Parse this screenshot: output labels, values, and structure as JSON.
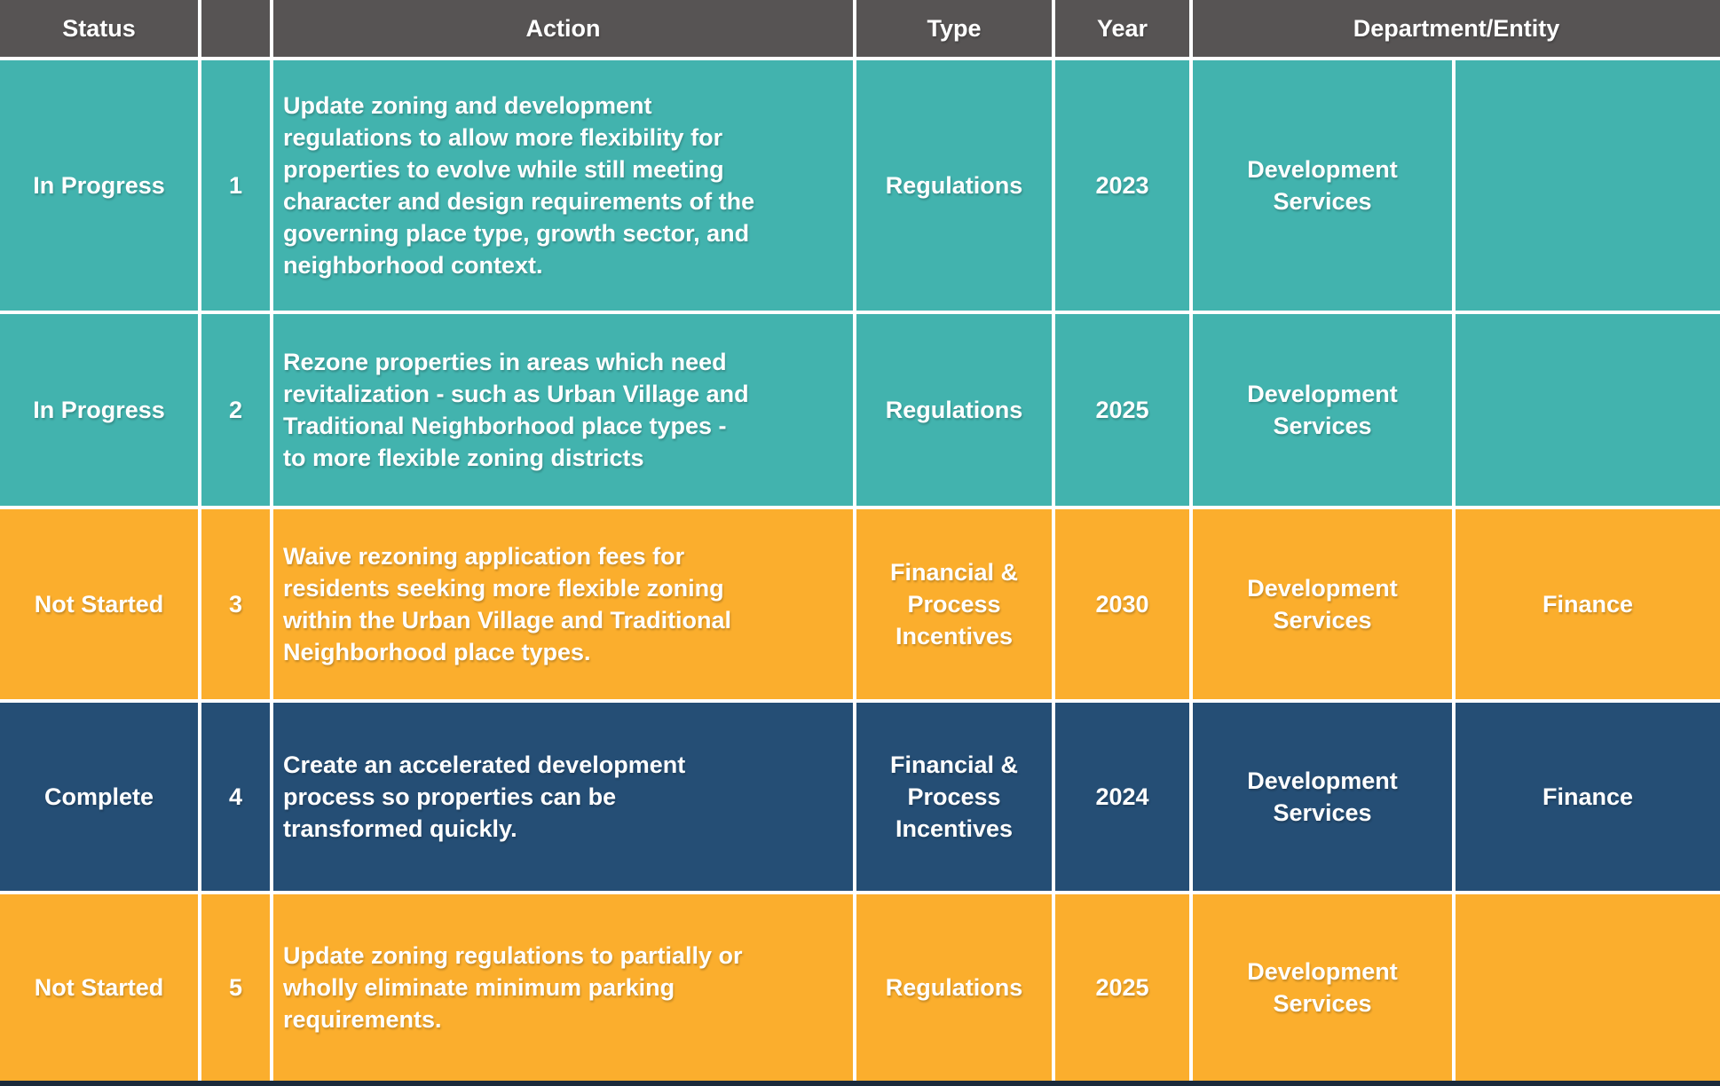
{
  "colors": {
    "header_bg": "#575454",
    "in_progress": "#42B3AE",
    "not_started": "#FBAE2D",
    "complete": "#254E75",
    "gridline": "#FFFFFF",
    "bottom_border": "#1B2A3A",
    "text": "#FFFFFF"
  },
  "table": {
    "columns": [
      {
        "key": "status",
        "label": "Status"
      },
      {
        "key": "num",
        "label": ""
      },
      {
        "key": "action",
        "label": "Action"
      },
      {
        "key": "type",
        "label": "Type"
      },
      {
        "key": "year",
        "label": "Year"
      },
      {
        "key": "department_entity",
        "label": "Department/Entity"
      }
    ],
    "rows": [
      {
        "theme": "in_progress",
        "status": "In Progress",
        "num": "1",
        "action": "Update zoning and development\nregulations to allow more flexibility for\nproperties to evolve while still meeting\ncharacter and design requirements of the\ngoverning place type, growth sector, and\nneighborhood context.",
        "type": "Regulations",
        "year": "2023",
        "department": "Development\nServices",
        "entity": ""
      },
      {
        "theme": "in_progress",
        "status": "In Progress",
        "num": "2",
        "action": "Rezone properties in areas which need\nrevitalization - such as Urban Village and\nTraditional Neighborhood place types -\nto more flexible zoning districts",
        "type": "Regulations",
        "year": "2025",
        "department": "Development\nServices",
        "entity": ""
      },
      {
        "theme": "not_started",
        "status": "Not Started",
        "num": "3",
        "action": "Waive rezoning application fees for\nresidents seeking more flexible zoning\nwithin the Urban Village and Traditional\nNeighborhood place types.",
        "type": "Financial &\nProcess\nIncentives",
        "year": "2030",
        "department": "Development\nServices",
        "entity": "Finance"
      },
      {
        "theme": "complete",
        "status": "Complete",
        "num": "4",
        "action": "Create an accelerated development\nprocess so properties can be\ntransformed quickly.",
        "type": "Financial &\nProcess\nIncentives",
        "year": "2024",
        "department": "Development\nServices",
        "entity": "Finance"
      },
      {
        "theme": "not_started",
        "status": "Not Started",
        "num": "5",
        "action": "Update zoning regulations to partially or\nwholly eliminate minimum parking\nrequirements.",
        "type": "Regulations",
        "year": "2025",
        "department": "Development\nServices",
        "entity": ""
      }
    ]
  }
}
